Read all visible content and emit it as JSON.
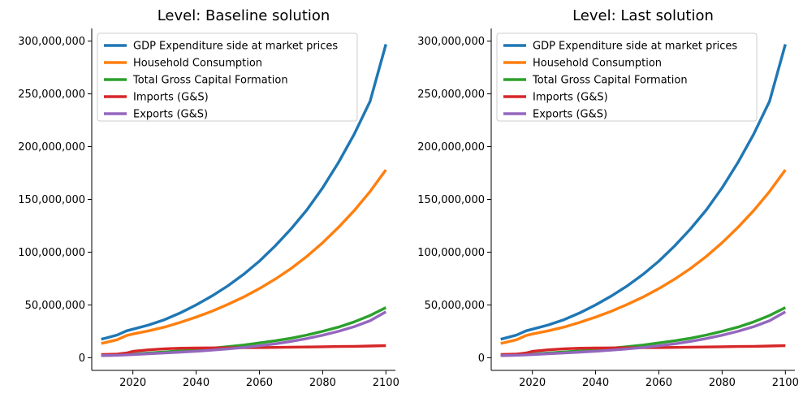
{
  "chart_data": [
    {
      "type": "line",
      "title": "Level: Baseline solution",
      "xlim": [
        2007,
        2103
      ],
      "ylim": [
        -12000000,
        312000000
      ],
      "x_ticks": [
        2020,
        2040,
        2060,
        2080,
        2100
      ],
      "y_ticks": [
        0,
        50000000,
        100000000,
        150000000,
        200000000,
        250000000,
        300000000
      ],
      "y_tick_labels": [
        "0",
        "50,000,000",
        "100,000,000",
        "150,000,000",
        "200,000,000",
        "250,000,000",
        "300,000,000"
      ],
      "legend_position": "upper-left",
      "x": [
        2010,
        2015,
        2018,
        2020,
        2025,
        2030,
        2035,
        2040,
        2045,
        2050,
        2055,
        2060,
        2065,
        2070,
        2075,
        2080,
        2085,
        2090,
        2095,
        2100
      ],
      "series": [
        {
          "name": "GDP Expenditure side at market prices",
          "color": "#1f77b4",
          "values": [
            17500000,
            21500000,
            25500000,
            27000000,
            31000000,
            36000000,
            42500000,
            50000000,
            58500000,
            68000000,
            79000000,
            91500000,
            106000000,
            122000000,
            140000000,
            161000000,
            185000000,
            212000000,
            243000000,
            297000000
          ]
        },
        {
          "name": "Household Consumption",
          "color": "#ff7f0e",
          "values": [
            13500000,
            17000000,
            21000000,
            22500000,
            25500000,
            29000000,
            33500000,
            38500000,
            44000000,
            50500000,
            57500000,
            65500000,
            74500000,
            84500000,
            96000000,
            109000000,
            123500000,
            139500000,
            157500000,
            178000000
          ]
        },
        {
          "name": "Total Gross Capital Formation",
          "color": "#2ca02c",
          "values": [
            2000000,
            2500000,
            3000000,
            3500000,
            4500000,
            5500000,
            6500000,
            7500000,
            9000000,
            10500000,
            12000000,
            14000000,
            16000000,
            18500000,
            21500000,
            25000000,
            29000000,
            34000000,
            40000000,
            47500000
          ]
        },
        {
          "name": "Imports (G&S)",
          "color": "#d62728",
          "values": [
            3000000,
            3500000,
            4500000,
            6000000,
            7500000,
            8500000,
            9000000,
            9200000,
            9300000,
            9400000,
            9500000,
            9600000,
            9800000,
            10000000,
            10200000,
            10400000,
            10600000,
            10800000,
            11100000,
            11500000
          ]
        },
        {
          "name": "Exports (G&S)",
          "color": "#9467bd",
          "values": [
            2000000,
            2300000,
            2700000,
            3000000,
            3800000,
            4500000,
            5300000,
            6200000,
            7200000,
            8300000,
            9700000,
            11300000,
            13200000,
            15500000,
            18200000,
            21300000,
            25000000,
            29500000,
            35000000,
            43500000
          ]
        }
      ]
    },
    {
      "type": "line",
      "title": "Level: Last solution",
      "xlim": [
        2007,
        2103
      ],
      "ylim": [
        -12000000,
        312000000
      ],
      "x_ticks": [
        2020,
        2040,
        2060,
        2080,
        2100
      ],
      "y_ticks": [
        0,
        50000000,
        100000000,
        150000000,
        200000000,
        250000000,
        300000000
      ],
      "y_tick_labels": [
        "0",
        "50,000,000",
        "100,000,000",
        "150,000,000",
        "200,000,000",
        "250,000,000",
        "300,000,000"
      ],
      "legend_position": "upper-left",
      "x": [
        2010,
        2015,
        2018,
        2020,
        2025,
        2030,
        2035,
        2040,
        2045,
        2050,
        2055,
        2060,
        2065,
        2070,
        2075,
        2080,
        2085,
        2090,
        2095,
        2100
      ],
      "series": [
        {
          "name": "GDP Expenditure side at market prices",
          "color": "#1f77b4",
          "values": [
            17500000,
            21500000,
            25500000,
            27000000,
            31000000,
            36000000,
            42500000,
            50000000,
            58500000,
            68000000,
            79000000,
            91500000,
            106000000,
            122000000,
            140000000,
            161000000,
            185000000,
            212000000,
            243000000,
            297000000
          ]
        },
        {
          "name": "Household Consumption",
          "color": "#ff7f0e",
          "values": [
            13500000,
            17000000,
            21000000,
            22500000,
            25500000,
            29000000,
            33500000,
            38500000,
            44000000,
            50500000,
            57500000,
            65500000,
            74500000,
            84500000,
            96000000,
            109000000,
            123500000,
            139500000,
            157500000,
            178000000
          ]
        },
        {
          "name": "Total Gross Capital Formation",
          "color": "#2ca02c",
          "values": [
            2000000,
            2500000,
            3000000,
            3500000,
            4500000,
            5500000,
            6500000,
            7500000,
            9000000,
            10500000,
            12000000,
            14000000,
            16000000,
            18500000,
            21500000,
            25000000,
            29000000,
            34000000,
            40000000,
            47500000
          ]
        },
        {
          "name": "Imports (G&S)",
          "color": "#d62728",
          "values": [
            3000000,
            3500000,
            4500000,
            6000000,
            7500000,
            8500000,
            9000000,
            9200000,
            9300000,
            9400000,
            9500000,
            9600000,
            9800000,
            10000000,
            10200000,
            10400000,
            10600000,
            10800000,
            11100000,
            11500000
          ]
        },
        {
          "name": "Exports (G&S)",
          "color": "#9467bd",
          "values": [
            2000000,
            2300000,
            2700000,
            3000000,
            3800000,
            4500000,
            5300000,
            6200000,
            7200000,
            8300000,
            9700000,
            11300000,
            13200000,
            15500000,
            18200000,
            21300000,
            25000000,
            29500000,
            35000000,
            43500000
          ]
        }
      ]
    }
  ]
}
